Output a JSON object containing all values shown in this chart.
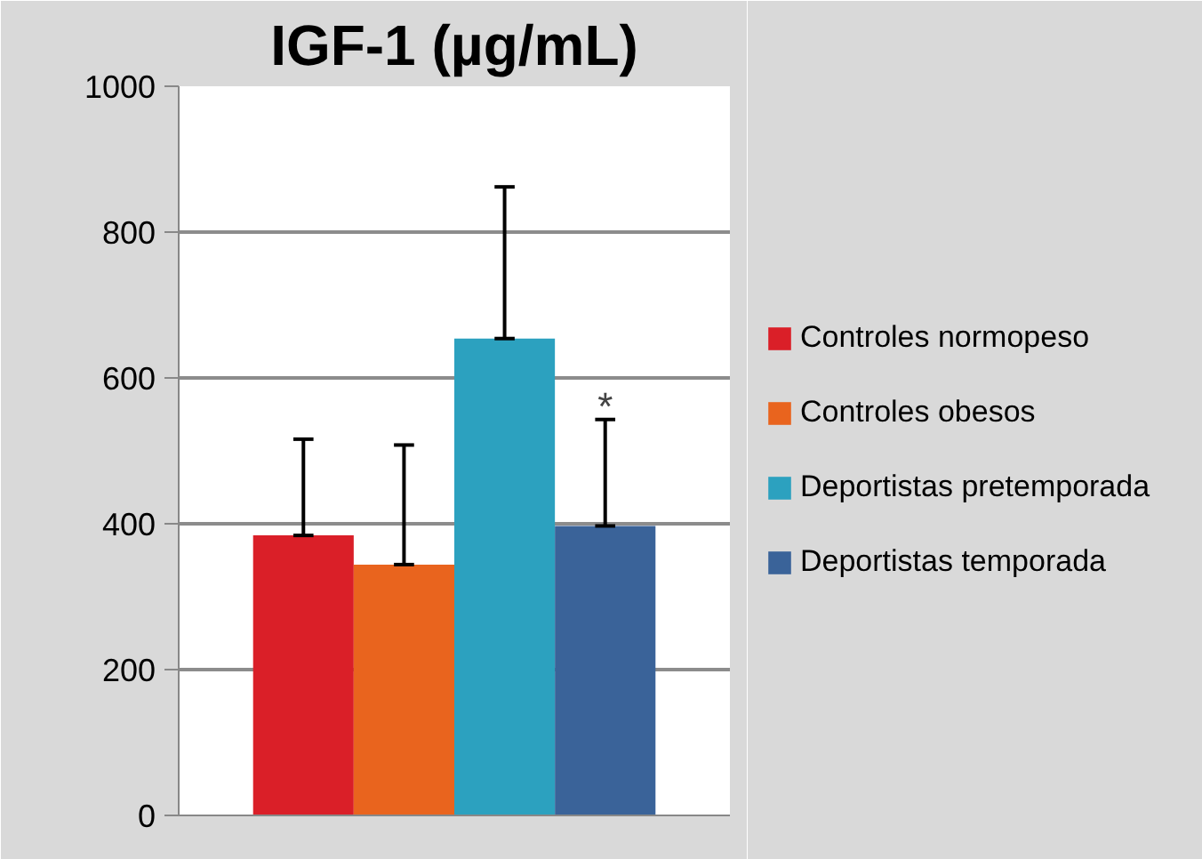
{
  "chart_data": {
    "type": "bar",
    "title": "IGF-1 (µg/mL)",
    "categories": [
      null
    ],
    "series": [
      {
        "name": "Controles normopeso",
        "color": "#da1f28",
        "values": [
          384
        ],
        "errors": [
          [
            384,
            516
          ]
        ]
      },
      {
        "name": "Controles obesos",
        "color": "#e9641e",
        "values": [
          344
        ],
        "errors": [
          [
            344,
            508
          ]
        ]
      },
      {
        "name": "Deportistas pretemporada",
        "color": "#2ca1bf",
        "values": [
          654
        ],
        "errors": [
          [
            654,
            862
          ]
        ]
      },
      {
        "name": "Deportistas temporada",
        "color": "#3a6399",
        "values": [
          397
        ],
        "errors": [
          [
            397,
            543
          ]
        ]
      }
    ],
    "ylim": [
      0,
      1000
    ],
    "yticks": [
      0,
      200,
      400,
      600,
      800,
      1000
    ],
    "grid": "y",
    "legend": "right",
    "annotations": [
      "*"
    ]
  }
}
